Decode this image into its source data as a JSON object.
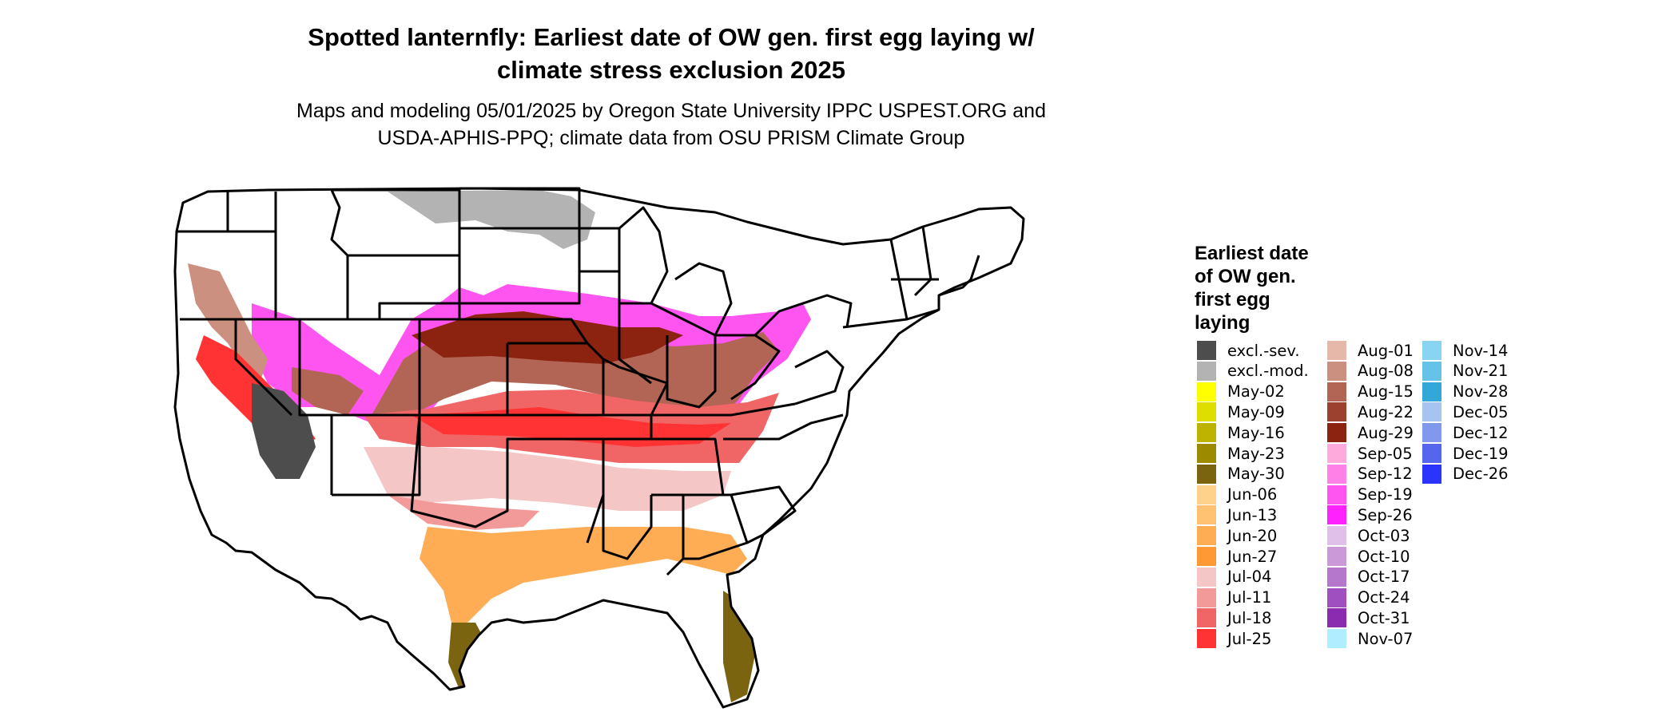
{
  "title_line1": "Spotted lanternfly: Earliest date of OW gen. first egg laying w/",
  "title_line2": "climate stress exclusion 2025",
  "subtitle_line1": "Maps and modeling 05/01/2025 by Oregon State University IPPC USPEST.ORG and",
  "subtitle_line2": "USDA-APHIS-PPQ; climate data from OSU PRISM Climate Group",
  "legend": {
    "title_lines": [
      "Earliest date",
      "of OW gen.",
      "first egg",
      "laying"
    ],
    "columns": [
      [
        {
          "label": "excl.-sev.",
          "color": "#4d4d4d"
        },
        {
          "label": "excl.-mod.",
          "color": "#b3b3b3"
        },
        {
          "label": "May-02",
          "color": "#ffff00"
        },
        {
          "label": "May-09",
          "color": "#dede00"
        },
        {
          "label": "May-16",
          "color": "#bdb300"
        },
        {
          "label": "May-23",
          "color": "#9c8a00"
        },
        {
          "label": "May-30",
          "color": "#7a6410"
        },
        {
          "label": "Jun-06",
          "color": "#ffd28c"
        },
        {
          "label": "Jun-13",
          "color": "#ffc273"
        },
        {
          "label": "Jun-20",
          "color": "#ffad55"
        },
        {
          "label": "Jun-27",
          "color": "#ff9933"
        },
        {
          "label": "Jul-04",
          "color": "#f5c6c6"
        },
        {
          "label": "Jul-11",
          "color": "#f29999"
        },
        {
          "label": "Jul-18",
          "color": "#f06666"
        },
        {
          "label": "Jul-25",
          "color": "#ff3333"
        }
      ],
      [
        {
          "label": "Aug-01",
          "color": "#e6b8aa"
        },
        {
          "label": "Aug-08",
          "color": "#cc9080"
        },
        {
          "label": "Aug-15",
          "color": "#b36555"
        },
        {
          "label": "Aug-22",
          "color": "#9c4030"
        },
        {
          "label": "Aug-29",
          "color": "#8c2311"
        },
        {
          "label": "Sep-05",
          "color": "#ffaadd"
        },
        {
          "label": "Sep-12",
          "color": "#ff80e6"
        },
        {
          "label": "Sep-19",
          "color": "#ff55f0"
        },
        {
          "label": "Sep-26",
          "color": "#ff22ff"
        },
        {
          "label": "Oct-03",
          "color": "#e0c0e8"
        },
        {
          "label": "Oct-10",
          "color": "#cc99d8"
        },
        {
          "label": "Oct-17",
          "color": "#b577cc"
        },
        {
          "label": "Oct-24",
          "color": "#9f4fc0"
        },
        {
          "label": "Oct-31",
          "color": "#8a2bb0"
        },
        {
          "label": "Nov-07",
          "color": "#b0eeff"
        }
      ],
      [
        {
          "label": "Nov-14",
          "color": "#88d4f2"
        },
        {
          "label": "Nov-21",
          "color": "#66c2e6"
        },
        {
          "label": "Nov-28",
          "color": "#33a8d8"
        },
        {
          "label": "Dec-05",
          "color": "#a6c4f0"
        },
        {
          "label": "Dec-12",
          "color": "#8099ec"
        },
        {
          "label": "Dec-19",
          "color": "#5566ee"
        },
        {
          "label": "Dec-26",
          "color": "#2b33ff"
        }
      ]
    ]
  }
}
